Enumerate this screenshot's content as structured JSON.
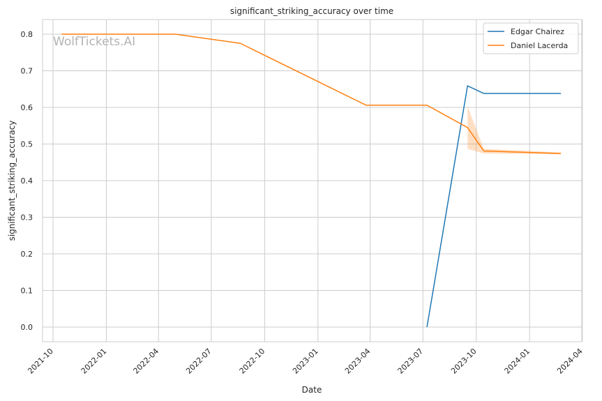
{
  "chart_data": {
    "type": "line",
    "title": "significant_striking_accuracy over time",
    "xlabel": "Date",
    "ylabel": "significant_striking_accuracy",
    "watermark": "WolfTickets.AI",
    "x_ticks": [
      "2021-10",
      "2022-01",
      "2022-04",
      "2022-07",
      "2022-10",
      "2023-01",
      "2023-04",
      "2023-07",
      "2023-10",
      "2024-01",
      "2024-04"
    ],
    "y_ticks": [
      "0.0",
      "0.1",
      "0.2",
      "0.3",
      "0.4",
      "0.5",
      "0.6",
      "0.7",
      "0.8"
    ],
    "xlim": [
      "2021-09-13",
      "2024-03-31"
    ],
    "ylim": [
      -0.04,
      0.84
    ],
    "grid": true,
    "legend_position": "top-right",
    "series": [
      {
        "name": "Edgar Chairez",
        "color": "#1f77b4",
        "x": [
          "2023-07-08",
          "2023-09-16",
          "2023-10-14",
          "2024-02-24"
        ],
        "y": [
          0.0,
          0.659,
          0.638,
          0.638
        ]
      },
      {
        "name": "Daniel Lacerda",
        "color": "#ff7f0e",
        "x": [
          "2021-10-16",
          "2022-04-30",
          "2022-08-20",
          "2023-03-25",
          "2023-07-08",
          "2023-09-16",
          "2023-10-14",
          "2024-02-24"
        ],
        "y": [
          0.8,
          0.8,
          0.775,
          0.606,
          0.606,
          0.545,
          0.481,
          0.474
        ],
        "band": {
          "x": [
            "2023-09-16",
            "2023-10-14",
            "2024-02-24"
          ],
          "lower": [
            0.487,
            0.474,
            0.472
          ],
          "upper": [
            0.603,
            0.487,
            0.477
          ]
        }
      }
    ]
  }
}
